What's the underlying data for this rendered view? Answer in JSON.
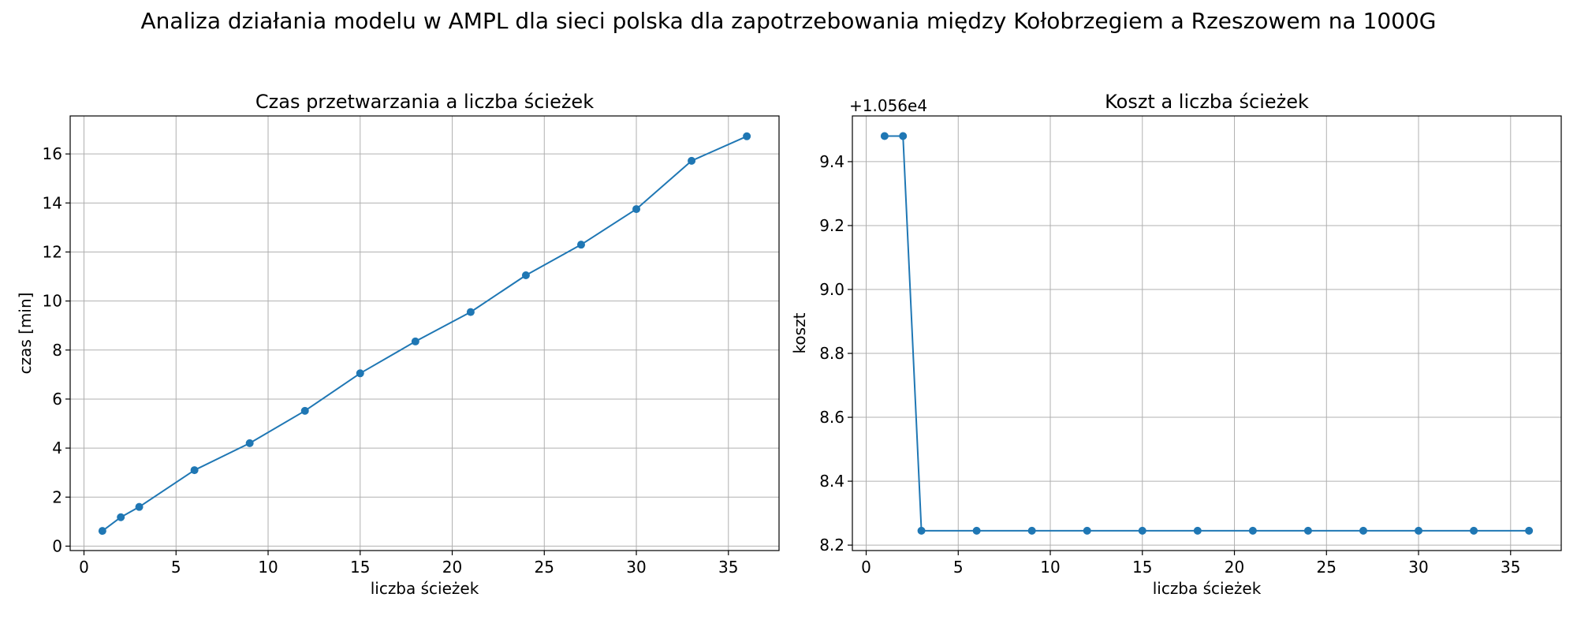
{
  "suptitle": "Analiza działania modelu w AMPL dla sieci polska dla zapotrzebowania między Kołobrzegiem a Rzeszowem na 1000G",
  "colors": {
    "series": "#1f77b4",
    "grid": "#b0b0b0",
    "axes": "#000000"
  },
  "chart_data": [
    {
      "type": "line",
      "title": "Czas przetwarzania a liczba ścieżek",
      "xlabel": "liczba ścieżek",
      "ylabel": "czas [min]",
      "x": [
        1,
        2,
        3,
        6,
        9,
        12,
        15,
        18,
        21,
        24,
        27,
        30,
        33,
        36
      ],
      "y": [
        0.62,
        1.18,
        1.6,
        3.1,
        4.2,
        5.52,
        7.05,
        8.35,
        9.55,
        11.05,
        12.3,
        13.75,
        15.72,
        16.72
      ],
      "xlim": [
        -0.75,
        37.75
      ],
      "ylim": [
        -0.18,
        17.55
      ],
      "xticks": [
        0,
        5,
        10,
        15,
        20,
        25,
        30,
        35
      ],
      "yticks": [
        0,
        2,
        4,
        6,
        8,
        10,
        12,
        14,
        16
      ],
      "ytick_labels": [
        "0",
        "2",
        "4",
        "6",
        "8",
        "10",
        "12",
        "14",
        "16"
      ],
      "offset_text": "",
      "grid": true,
      "marker": "circle"
    },
    {
      "type": "line",
      "title": "Koszt a liczba ścieżek",
      "xlabel": "liczba ścieżek",
      "ylabel": "koszt",
      "x": [
        1,
        2,
        3,
        6,
        9,
        12,
        15,
        18,
        21,
        24,
        27,
        30,
        33,
        36
      ],
      "y": [
        9.48,
        9.48,
        8.245,
        8.245,
        8.245,
        8.245,
        8.245,
        8.245,
        8.245,
        8.245,
        8.245,
        8.245,
        8.245,
        8.245
      ],
      "xlim": [
        -0.75,
        37.75
      ],
      "ylim": [
        8.183,
        9.543
      ],
      "xticks": [
        0,
        5,
        10,
        15,
        20,
        25,
        30,
        35
      ],
      "yticks": [
        8.2,
        8.4,
        8.6,
        8.8,
        9.0,
        9.2,
        9.4
      ],
      "ytick_labels": [
        "8.2",
        "8.4",
        "8.6",
        "8.8",
        "9.0",
        "9.2",
        "9.4"
      ],
      "offset_text": "+1.056e4",
      "grid": true,
      "marker": "circle"
    }
  ]
}
